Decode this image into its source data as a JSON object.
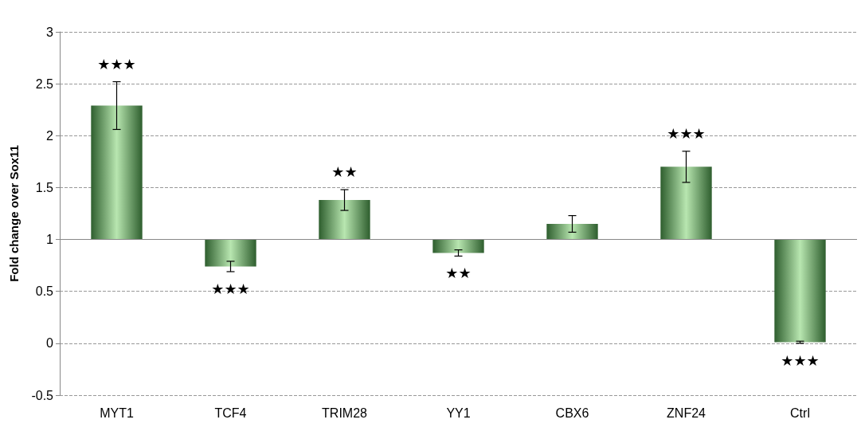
{
  "chart_data": {
    "type": "bar",
    "ylabel": "Fold change over Sox11",
    "categories": [
      "MYT1",
      "TCF4",
      "TRIM28",
      "YY1",
      "CBX6",
      "ZNF24",
      "Ctrl"
    ],
    "base": [
      1,
      1,
      1,
      1,
      1,
      1,
      1
    ],
    "values": [
      1.29,
      -0.26,
      0.38,
      -0.13,
      0.15,
      0.7,
      -0.99
    ],
    "errors": [
      0.23,
      0.05,
      0.1,
      0.03,
      0.08,
      0.15,
      0.01
    ],
    "color": "#b8e6b0",
    "ylim": [
      -0.5,
      3
    ],
    "yticks": [
      -0.5,
      0,
      0.5,
      1,
      1.5,
      2,
      2.5,
      3
    ],
    "grid": "y",
    "ref_lines": [
      {
        "axis": "y",
        "value": 1,
        "color": "#888888",
        "line_style": "solid"
      }
    ],
    "annotations": [
      {
        "text": "★★★",
        "x": "MYT1",
        "y": 2.29
      },
      {
        "text": "★★★",
        "x": "TCF4",
        "y": 0.74
      },
      {
        "text": "★★",
        "x": "TRIM28",
        "y": 1.38
      },
      {
        "text": "★★",
        "x": "YY1",
        "y": 0.87
      },
      {
        "text": "★★★",
        "x": "ZNF24",
        "y": 1.7
      },
      {
        "text": "★★★",
        "x": "Ctrl",
        "y": 0.01
      }
    ]
  }
}
